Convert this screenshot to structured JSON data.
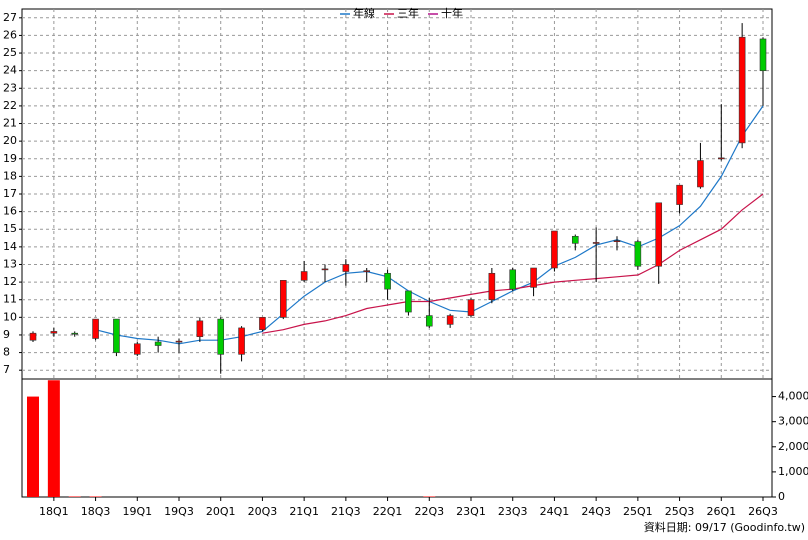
{
  "chart_data": {
    "type": "candlestick",
    "categories": [
      null,
      "18Q1",
      null,
      "18Q3",
      null,
      "19Q1",
      null,
      "19Q3",
      null,
      "20Q1",
      null,
      "20Q3",
      null,
      "21Q1",
      null,
      "21Q3",
      null,
      "22Q1",
      null,
      "22Q3",
      null,
      "23Q1",
      null,
      "23Q3",
      null,
      "24Q1",
      null,
      "24Q3",
      null,
      "25Q1",
      null,
      "25Q3",
      null,
      "26Q1",
      null,
      "26Q3"
    ],
    "open": [
      8.7,
      9.1,
      9.1,
      8.8,
      9.9,
      7.9,
      8.6,
      8.6,
      8.9,
      9.9,
      7.9,
      9.3,
      10.0,
      12.1,
      12.7,
      12.6,
      12.6,
      12.5,
      11.5,
      10.1,
      9.6,
      10.1,
      11.0,
      12.7,
      11.7,
      12.8,
      14.6,
      14.2,
      14.3,
      14.3,
      12.9,
      16.4,
      17.4,
      19.0,
      19.9,
      25.8
    ],
    "high": [
      9.2,
      9.4,
      9.2,
      9.9,
      9.9,
      8.6,
      8.9,
      8.8,
      10.0,
      10.0,
      9.5,
      10.0,
      12.1,
      13.2,
      13.0,
      13.3,
      12.8,
      12.7,
      11.5,
      11.1,
      10.2,
      11.1,
      12.8,
      12.8,
      12.8,
      14.9,
      14.7,
      15.1,
      14.6,
      14.4,
      16.5,
      17.5,
      19.9,
      22.1,
      26.7,
      25.9
    ],
    "low": [
      8.6,
      8.9,
      8.9,
      8.7,
      7.8,
      7.8,
      8.0,
      8.0,
      8.6,
      6.8,
      7.5,
      9.2,
      9.9,
      12.0,
      12.0,
      11.8,
      12.0,
      11.0,
      10.1,
      9.4,
      9.4,
      10.0,
      10.8,
      11.5,
      11.2,
      12.6,
      13.8,
      12.0,
      13.8,
      12.7,
      11.9,
      15.9,
      17.3,
      18.9,
      19.6,
      22.0
    ],
    "close": [
      9.1,
      9.2,
      9.05,
      9.9,
      8.0,
      8.5,
      8.4,
      8.65,
      9.8,
      7.9,
      9.4,
      10.0,
      12.1,
      12.6,
      12.75,
      13.0,
      12.65,
      11.6,
      10.3,
      9.5,
      10.1,
      11.0,
      12.5,
      11.6,
      12.8,
      14.9,
      14.2,
      14.25,
      14.35,
      12.9,
      16.5,
      17.5,
      18.9,
      19.05,
      25.9,
      24.0
    ],
    "up_color": "#ff0000",
    "down_color": "#00cc00",
    "lines": [
      {
        "name": "年線",
        "color": "#1e78c8",
        "values": [
          null,
          null,
          null,
          9.3,
          9.0,
          8.8,
          8.7,
          8.5,
          8.7,
          8.7,
          8.9,
          9.2,
          10.2,
          11.2,
          12.0,
          12.5,
          12.6,
          12.3,
          11.5,
          10.9,
          10.4,
          10.3,
          10.9,
          11.5,
          12.0,
          12.9,
          13.4,
          14.1,
          14.4,
          14.0,
          14.5,
          15.2,
          16.3,
          18.0,
          20.3,
          22.0
        ]
      },
      {
        "name": "三年",
        "color": "#c8144b",
        "values": [
          null,
          null,
          null,
          null,
          null,
          null,
          null,
          null,
          null,
          null,
          null,
          9.1,
          9.3,
          9.6,
          9.8,
          10.1,
          10.5,
          10.7,
          10.9,
          10.9,
          11.1,
          11.3,
          11.5,
          11.6,
          11.8,
          12.0,
          12.1,
          12.2,
          12.3,
          12.4,
          13.0,
          13.8,
          14.4,
          15.0,
          16.1,
          17.0
        ]
      },
      {
        "name": "十年",
        "color": "#b4148c",
        "values": [
          null,
          null,
          null,
          null,
          null,
          null,
          null,
          null,
          null,
          null,
          null,
          null,
          null,
          null,
          null,
          null,
          null,
          null,
          null,
          null,
          null,
          null,
          null,
          null,
          null,
          null,
          null,
          null,
          null,
          null,
          null,
          null,
          null,
          null,
          null,
          null
        ]
      }
    ],
    "ylim": [
      6.5,
      27.5
    ],
    "yticks": [
      7,
      8,
      9,
      10,
      11,
      12,
      13,
      14,
      15,
      16,
      17,
      18,
      19,
      20,
      21,
      22,
      23,
      24,
      25,
      26,
      27
    ],
    "grid": true,
    "volume": {
      "color": "#ff0000",
      "values": [
        4000,
        4650,
        20,
        20,
        0,
        0,
        0,
        0,
        0,
        0,
        0,
        0,
        0,
        0,
        0,
        0,
        0,
        0,
        0,
        20,
        0,
        0,
        0,
        0,
        0,
        0,
        0,
        0,
        0,
        0,
        0,
        0,
        0,
        0,
        0,
        0
      ],
      "ylim": [
        0,
        4700
      ],
      "yticks": [
        0,
        {
          "value": 1000,
          "label": "1,000"
        },
        {
          "value": 2000,
          "label": "2,000"
        },
        {
          "value": 3000,
          "label": "3,000"
        },
        {
          "value": 4000,
          "label": "4,000"
        }
      ]
    },
    "source_note": "資料日期: 09/17 (Goodinfo.tw)"
  }
}
